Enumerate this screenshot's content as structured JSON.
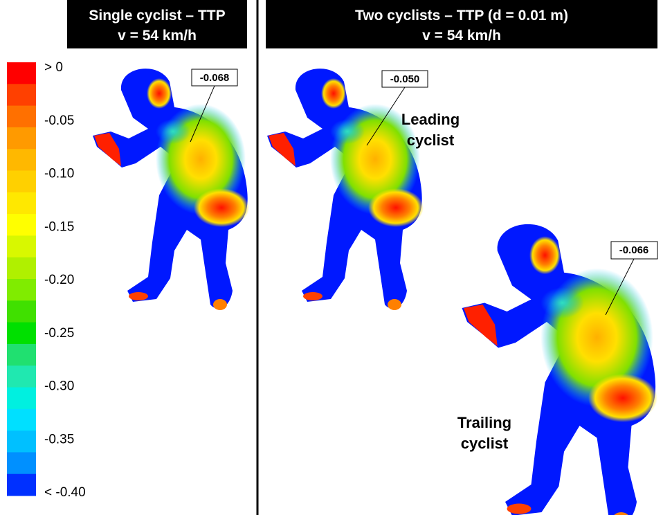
{
  "panels": [
    {
      "title_lines": [
        "Single cyclist – TTP",
        "v = 54 km/h"
      ]
    },
    {
      "title_lines": [
        "Two cyclists – TTP (d = 0.01 m)",
        "v = 54 km/h"
      ]
    }
  ],
  "colorbar": {
    "labels": [
      "> 0",
      "-0.05",
      "-0.10",
      "-0.15",
      "-0.20",
      "-0.25",
      "-0.30",
      "-0.35",
      "< -0.40"
    ]
  },
  "annotations": [
    "-0.068",
    "-0.050",
    "-0.066"
  ],
  "cyclist_labels": [
    {
      "lines": [
        "Leading",
        "cyclist"
      ]
    },
    {
      "lines": [
        "Trailing",
        "cyclist"
      ]
    }
  ]
}
